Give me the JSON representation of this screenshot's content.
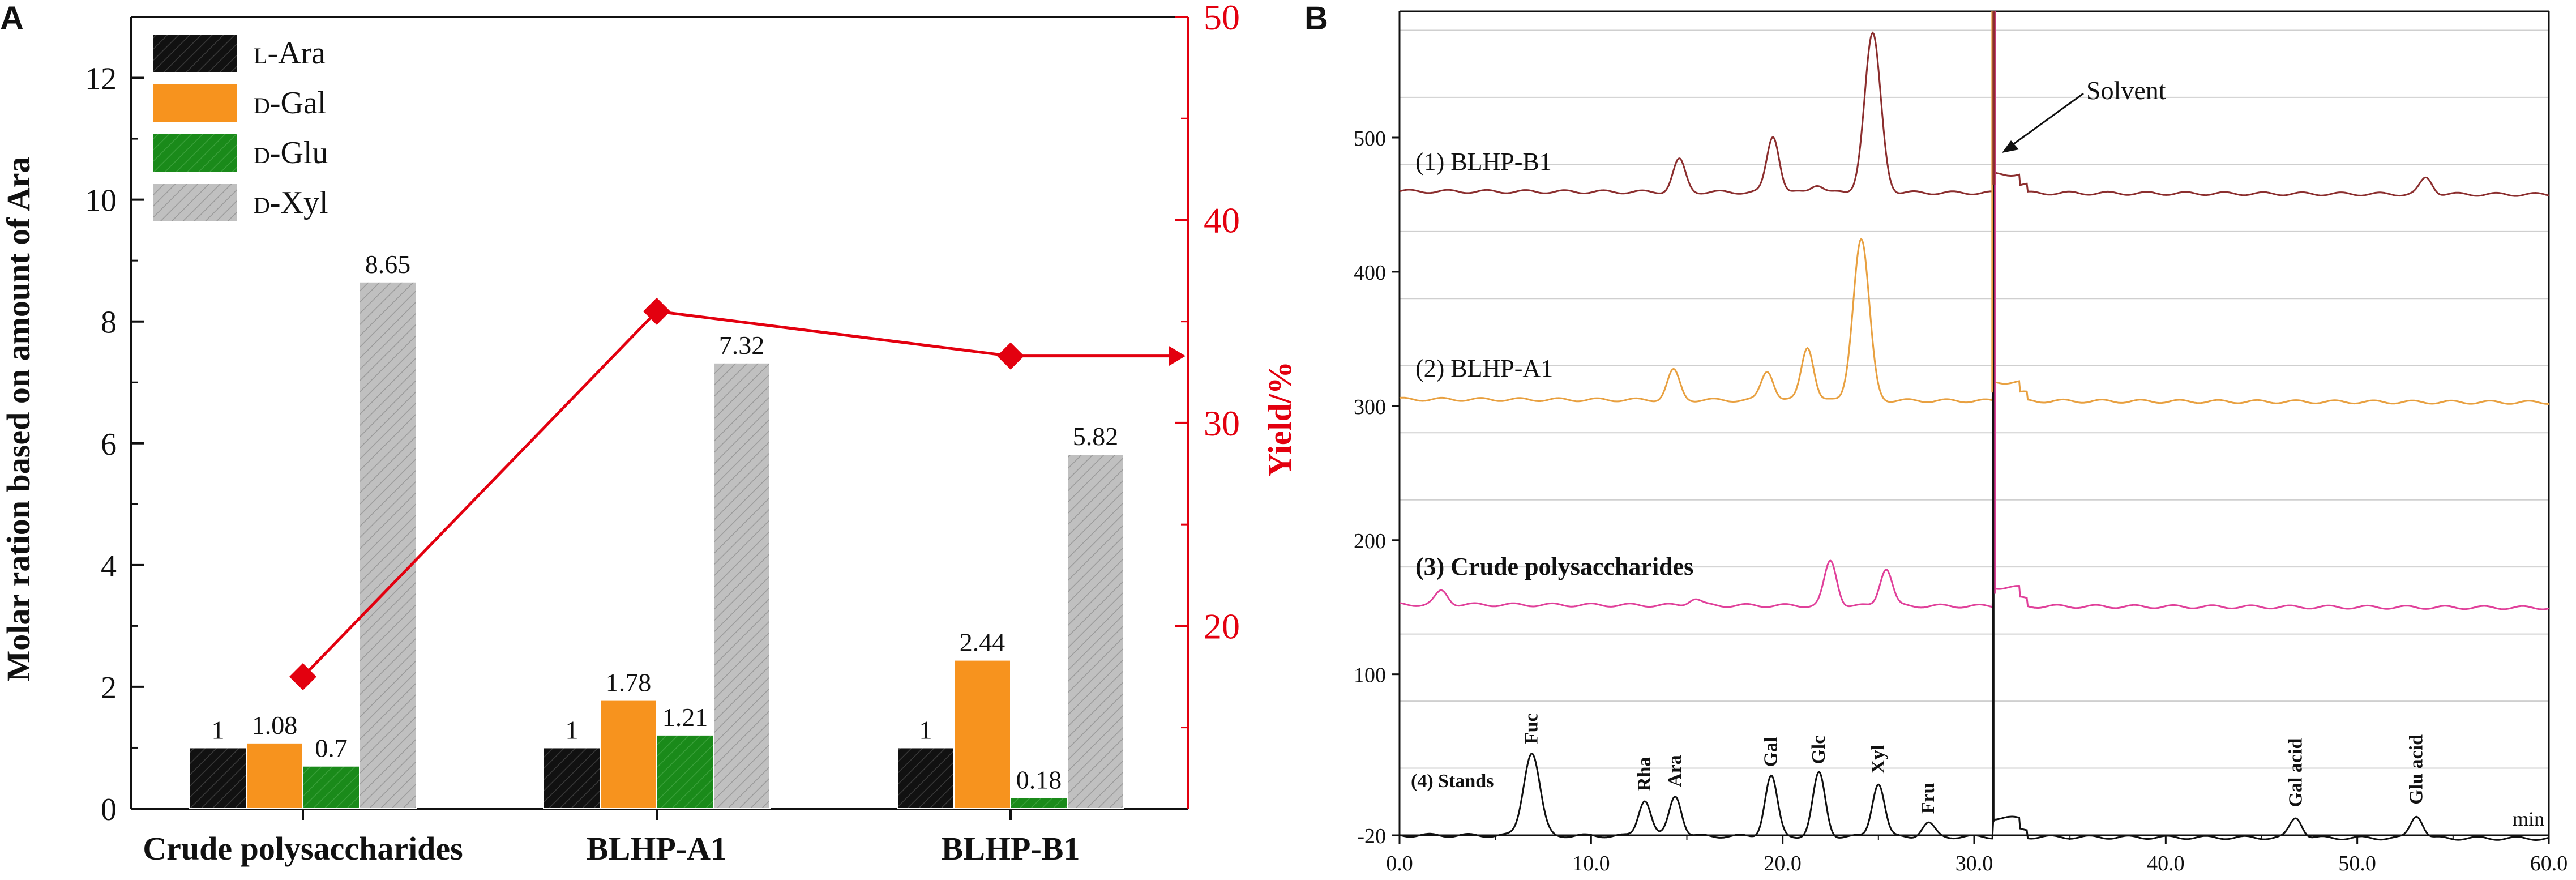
{
  "chart_data": [
    {
      "panel": "A",
      "type": "bar",
      "categories": [
        "Crude polysaccharides",
        "BLHP-A1",
        "BLHP-B1"
      ],
      "series": [
        {
          "name": "L-Ara",
          "prefix": "L",
          "sugar": "-Ara",
          "color": "#111111",
          "values": [
            1,
            1,
            1
          ],
          "labels": [
            "1",
            "1",
            "1"
          ]
        },
        {
          "name": "D-Gal",
          "prefix": "D",
          "sugar": "-Gal",
          "color": "#f7931e",
          "values": [
            1.08,
            1.78,
            2.44
          ],
          "labels": [
            "1.08",
            "1.78",
            "2.44"
          ]
        },
        {
          "name": "D-Glu",
          "prefix": "D",
          "sugar": "-Glu",
          "color": "#1a8a1a",
          "values": [
            0.7,
            1.21,
            0.18
          ],
          "labels": [
            "0.7",
            "1.21",
            "0.18"
          ]
        },
        {
          "name": "D-Xyl",
          "prefix": "D",
          "sugar": "-Xyl",
          "color": "#c0c0c0",
          "values": [
            8.65,
            7.32,
            5.82
          ],
          "labels": [
            "8.65",
            "7.32",
            "5.82"
          ]
        }
      ],
      "ylabel": "Molar ration based on amount of Ara",
      "ylim": [
        0,
        13
      ],
      "yticks": [
        "0",
        "2",
        "4",
        "6",
        "8",
        "10",
        "12"
      ],
      "yield_series": {
        "name": "Yield/%",
        "color": "#e3000f",
        "values": [
          17.5,
          35.5,
          33.3
        ],
        "tail_to_axis": 33.3
      },
      "y2label": "Yield/%",
      "y2lim": [
        11,
        50
      ],
      "y2ticks": [
        "20",
        "30",
        "40",
        "50"
      ]
    },
    {
      "panel": "B",
      "type": "line",
      "xlabel_unit": "min",
      "xlim": [
        0,
        60
      ],
      "xticks": [
        "0.0",
        "10.0",
        "20.0",
        "30.0",
        "40.0",
        "50.0",
        "60.0"
      ],
      "ylim": [
        -20,
        610
      ],
      "yticks": [
        "-20",
        "100",
        "200",
        "300",
        "400",
        "500"
      ],
      "series": [
        {
          "name": "(1)  BLHP-B1",
          "color": "#8b2e2e",
          "baseline": 460,
          "peaks": [
            [
              14.6,
              24
            ],
            [
              19.5,
              42
            ],
            [
              21.8,
              6
            ],
            [
              24.7,
              118
            ],
            [
              53.6,
              12
            ]
          ]
        },
        {
          "name": "(2)  BLHP-A1",
          "color": "#e8a040",
          "baseline": 305,
          "peaks": [
            [
              14.3,
              22
            ],
            [
              19.2,
              22
            ],
            [
              21.3,
              40
            ],
            [
              24.1,
              120
            ]
          ]
        },
        {
          "name": "(3)  Crude polysaccharides",
          "color": "#e0409a",
          "baseline": 152,
          "peaks": [
            [
              2.2,
              10
            ],
            [
              15.4,
              5
            ],
            [
              22.5,
              33
            ],
            [
              25.4,
              28
            ]
          ]
        },
        {
          "name": "(4)  Stands",
          "color": "#111111",
          "baseline": -20,
          "peaks": [
            [
              6.9,
              62
            ],
            [
              12.8,
              27
            ],
            [
              14.4,
              30
            ],
            [
              19.4,
              45
            ],
            [
              21.9,
              47
            ],
            [
              25.0,
              40
            ],
            [
              27.6,
              10
            ],
            [
              46.8,
              15
            ],
            [
              53.1,
              17
            ]
          ]
        }
      ],
      "peak_labels": [
        {
          "text": "Fuc",
          "time": 6.9
        },
        {
          "text": "Rha",
          "time": 12.8
        },
        {
          "text": "Ara",
          "time": 14.4
        },
        {
          "text": "Gal",
          "time": 19.4
        },
        {
          "text": "Glc",
          "time": 21.9
        },
        {
          "text": "Xyl",
          "time": 25.0
        },
        {
          "text": "Fru",
          "time": 27.6
        },
        {
          "text": "Gal acid",
          "time": 46.8
        },
        {
          "text": "Glu acid",
          "time": 53.1
        }
      ],
      "solvent_peak_time": 31.0,
      "annotation": "Solvent"
    }
  ],
  "panel_labels": {
    "a": "A",
    "b": "B"
  }
}
